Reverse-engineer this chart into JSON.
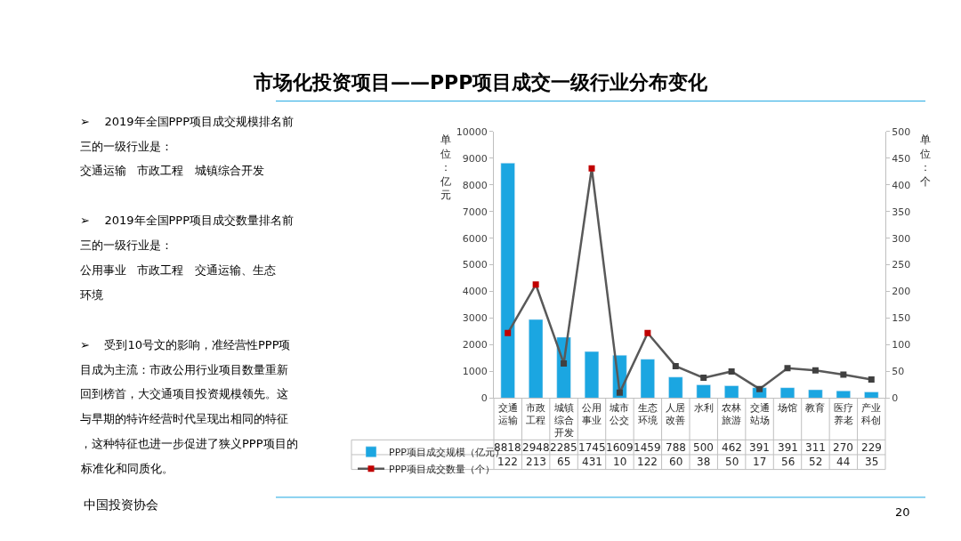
{
  "chart_data": {
    "type": "bar",
    "title": "市场化投资项目——PPP项目成交一级行业分布变化",
    "ylabel": "单位：亿元",
    "y2label": "单位：个",
    "categories": [
      "交通运输",
      "市政工程",
      "城镇综合开发",
      "公用事业",
      "城市公交",
      "生态环境",
      "人居改善",
      "水利",
      "农林旅游",
      "交通站场",
      "场馆",
      "教育",
      "医疗养老",
      "产业科创"
    ],
    "series": [
      {
        "name": "PPP项目成交规模（亿元）",
        "color": "#1ba6e1",
        "values": [
          8818,
          2948,
          2285,
          1745,
          1609,
          1459,
          788,
          500,
          462,
          391,
          391,
          311,
          270,
          229
        ]
      },
      {
        "name": "PPP项目成交数量（个）",
        "type": "line",
        "axis": "y2",
        "color": "#595959",
        "colors": [
          "#c00000",
          "#c00000",
          "#404040",
          "#c00000",
          "#404040",
          "#c00000",
          "#404040",
          "#404040",
          "#404040",
          "#404040",
          "#404040",
          "#404040",
          "#404040",
          "#404040"
        ],
        "marker": "square",
        "line_style": "solid",
        "values": [
          122,
          213,
          65,
          431,
          10,
          122,
          60,
          38,
          50,
          17,
          56,
          52,
          44,
          35
        ]
      }
    ],
    "ylim": [
      0,
      10000
    ],
    "yticks": [
      0,
      1000,
      2000,
      3000,
      4000,
      5000,
      6000,
      7000,
      8000,
      9000,
      10000
    ],
    "y2lim": [
      0,
      500
    ],
    "y2ticks": [
      0,
      50,
      100,
      150,
      200,
      250,
      300,
      350,
      400,
      450,
      500
    ],
    "grid": false,
    "legend": "bottom left",
    "data_labels": true,
    "annotations": [
      "➢    2019年全国PPP项目成交规模排名前三的一级行业是：",
      "交通运输   市政工程   城镇综合开发",
      "➢    2019年全国PPP项目成交数量排名前三的一级行业是：",
      "公用事业   市政工程   交通运输、生态环境",
      "➢    受到10号文的影响，准经营性PPP项目成为主流：市政公用行业项目数量重新回到榜首，大交通项目投资规模领先。这与早期的特许经营时代呈现出相同的特征，这种特征也进一步促进了狭义PPP项目的标准化和同质化。",
      "中国投资协会",
      "20"
    ]
  }
}
